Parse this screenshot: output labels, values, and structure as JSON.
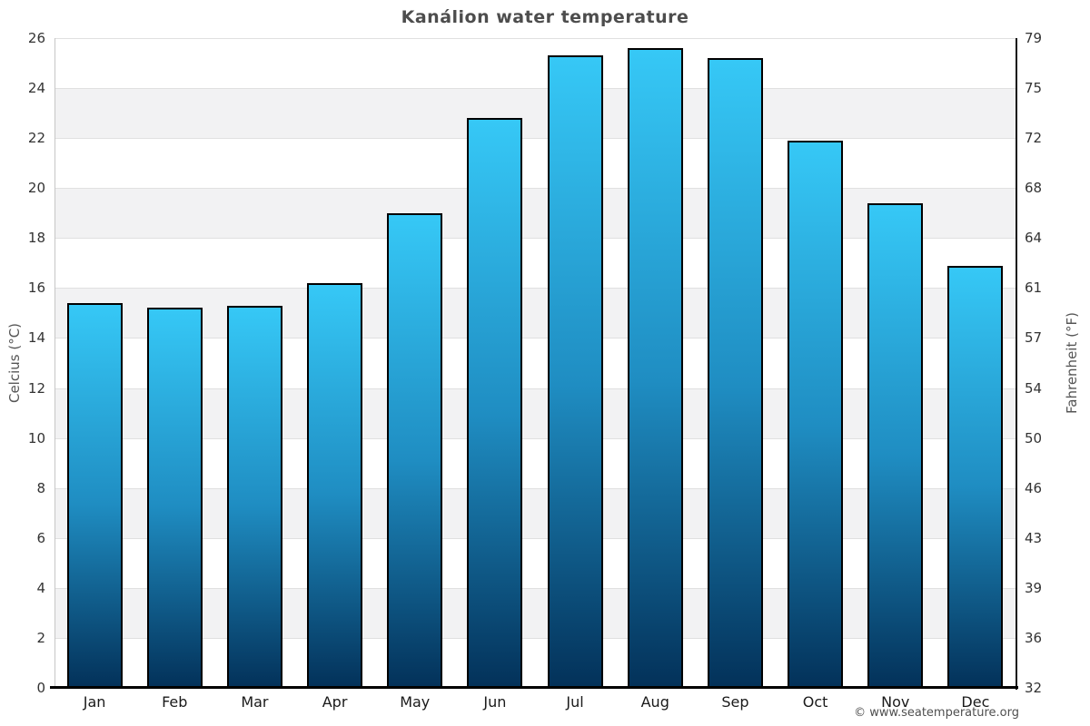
{
  "page": {
    "attribution": "© www.seatemperature.org"
  },
  "chart_data": {
    "type": "bar",
    "title": "Kanálion water temperature",
    "categories": [
      "Jan",
      "Feb",
      "Mar",
      "Apr",
      "May",
      "Jun",
      "Jul",
      "Aug",
      "Sep",
      "Oct",
      "Nov",
      "Dec"
    ],
    "values": [
      15.4,
      15.2,
      15.3,
      16.2,
      19.0,
      22.8,
      25.3,
      25.6,
      25.2,
      21.9,
      19.4,
      16.9
    ],
    "unit": "°C",
    "ylabel_left": "Celcius (°C)",
    "ylabel_right": "Fahrenheit (°F)",
    "ylim": [
      0,
      26
    ],
    "yticks_celsius": [
      0,
      2,
      4,
      6,
      8,
      10,
      12,
      14,
      16,
      18,
      20,
      22,
      24,
      26
    ],
    "yticks_fahrenheit": [
      32,
      36,
      39,
      43,
      46,
      50,
      54,
      57,
      61,
      64,
      68,
      72,
      75,
      79
    ],
    "grid": "horizontal-bands-every-2C",
    "legend": "none",
    "colors": {
      "bar_top": "#36c8f6",
      "bar_mid": "#1f8dc2",
      "bar_bottom": "#033159",
      "bar_border": "#000000",
      "band_white": "#ffffff",
      "band_gray": "#f2f2f3",
      "gridline": "#e0e0e0",
      "axis_left_line": "#c6c6c6",
      "axis_right_line": "#111111",
      "axis_bottom_line": "#000000",
      "title_text": "#4d4d4d",
      "tick_text": "#333333",
      "month_text": "#1a1a1a",
      "axis_title_text": "#555555",
      "attribution_text": "#4f4f4f"
    }
  }
}
